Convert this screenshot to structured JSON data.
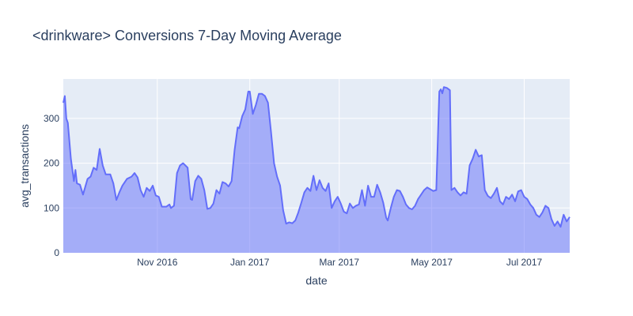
{
  "chart_data": {
    "type": "area",
    "title": "<drinkware> Conversions 7-Day Moving Average",
    "xlabel": "date",
    "ylabel": "avg_transactions",
    "x_range": [
      "2016-08-31",
      "2017-07-31"
    ],
    "ylim": [
      0,
      388
    ],
    "y_ticks": [
      0,
      100,
      200,
      300
    ],
    "x_ticks": [
      {
        "date": "2016-11-01",
        "label": "Nov 2016"
      },
      {
        "date": "2017-01-01",
        "label": "Jan 2017"
      },
      {
        "date": "2017-03-01",
        "label": "Mar 2017"
      },
      {
        "date": "2017-05-01",
        "label": "May 2017"
      },
      {
        "date": "2017-07-01",
        "label": "Jul 2017"
      }
    ],
    "grid": true,
    "colors": {
      "plot_bg": "#e5ecf6",
      "line": "#636efa",
      "fill": "rgba(99,110,250,0.5)",
      "grid": "#ffffff",
      "text": "#2a3f5f"
    },
    "series": [
      {
        "points": [
          [
            "2016-08-31",
            335
          ],
          [
            "2016-09-01",
            350
          ],
          [
            "2016-09-02",
            300
          ],
          [
            "2016-09-03",
            290
          ],
          [
            "2016-09-05",
            210
          ],
          [
            "2016-09-07",
            160
          ],
          [
            "2016-09-08",
            185
          ],
          [
            "2016-09-09",
            155
          ],
          [
            "2016-09-11",
            152
          ],
          [
            "2016-09-13",
            130
          ],
          [
            "2016-09-16",
            165
          ],
          [
            "2016-09-18",
            170
          ],
          [
            "2016-09-20",
            190
          ],
          [
            "2016-09-22",
            185
          ],
          [
            "2016-09-24",
            232
          ],
          [
            "2016-09-26",
            195
          ],
          [
            "2016-09-28",
            175
          ],
          [
            "2016-10-01",
            175
          ],
          [
            "2016-10-03",
            155
          ],
          [
            "2016-10-05",
            118
          ],
          [
            "2016-10-07",
            135
          ],
          [
            "2016-10-09",
            150
          ],
          [
            "2016-10-12",
            165
          ],
          [
            "2016-10-15",
            170
          ],
          [
            "2016-10-17",
            178
          ],
          [
            "2016-10-19",
            168
          ],
          [
            "2016-10-21",
            140
          ],
          [
            "2016-10-23",
            125
          ],
          [
            "2016-10-25",
            145
          ],
          [
            "2016-10-27",
            138
          ],
          [
            "2016-10-29",
            150
          ],
          [
            "2016-10-31",
            128
          ],
          [
            "2016-11-02",
            125
          ],
          [
            "2016-11-04",
            103
          ],
          [
            "2016-11-07",
            103
          ],
          [
            "2016-11-09",
            108
          ],
          [
            "2016-11-10",
            100
          ],
          [
            "2016-11-12",
            105
          ],
          [
            "2016-11-14",
            178
          ],
          [
            "2016-11-16",
            195
          ],
          [
            "2016-11-18",
            200
          ],
          [
            "2016-11-21",
            190
          ],
          [
            "2016-11-23",
            120
          ],
          [
            "2016-11-24",
            118
          ],
          [
            "2016-11-26",
            160
          ],
          [
            "2016-11-28",
            172
          ],
          [
            "2016-11-30",
            165
          ],
          [
            "2016-12-02",
            140
          ],
          [
            "2016-12-04",
            98
          ],
          [
            "2016-12-06",
            100
          ],
          [
            "2016-12-08",
            110
          ],
          [
            "2016-12-10",
            140
          ],
          [
            "2016-12-12",
            132
          ],
          [
            "2016-12-14",
            158
          ],
          [
            "2016-12-16",
            155
          ],
          [
            "2016-12-18",
            148
          ],
          [
            "2016-12-20",
            160
          ],
          [
            "2016-12-22",
            230
          ],
          [
            "2016-12-24",
            280
          ],
          [
            "2016-12-25",
            278
          ],
          [
            "2016-12-27",
            305
          ],
          [
            "2016-12-29",
            320
          ],
          [
            "2016-12-31",
            360
          ],
          [
            "2017-01-01",
            360
          ],
          [
            "2017-01-03",
            310
          ],
          [
            "2017-01-05",
            330
          ],
          [
            "2017-01-07",
            355
          ],
          [
            "2017-01-09",
            355
          ],
          [
            "2017-01-11",
            350
          ],
          [
            "2017-01-13",
            335
          ],
          [
            "2017-01-15",
            270
          ],
          [
            "2017-01-17",
            200
          ],
          [
            "2017-01-19",
            170
          ],
          [
            "2017-01-21",
            150
          ],
          [
            "2017-01-23",
            95
          ],
          [
            "2017-01-25",
            65
          ],
          [
            "2017-01-27",
            68
          ],
          [
            "2017-01-29",
            66
          ],
          [
            "2017-01-31",
            72
          ],
          [
            "2017-02-02",
            90
          ],
          [
            "2017-02-04",
            112
          ],
          [
            "2017-02-06",
            135
          ],
          [
            "2017-02-08",
            145
          ],
          [
            "2017-02-10",
            138
          ],
          [
            "2017-02-12",
            172
          ],
          [
            "2017-02-14",
            140
          ],
          [
            "2017-02-16",
            162
          ],
          [
            "2017-02-18",
            145
          ],
          [
            "2017-02-20",
            138
          ],
          [
            "2017-02-22",
            155
          ],
          [
            "2017-02-24",
            100
          ],
          [
            "2017-02-26",
            115
          ],
          [
            "2017-02-28",
            125
          ],
          [
            "2017-03-02",
            110
          ],
          [
            "2017-03-04",
            92
          ],
          [
            "2017-03-06",
            88
          ],
          [
            "2017-03-08",
            110
          ],
          [
            "2017-03-10",
            100
          ],
          [
            "2017-03-12",
            105
          ],
          [
            "2017-03-14",
            108
          ],
          [
            "2017-03-16",
            140
          ],
          [
            "2017-03-18",
            105
          ],
          [
            "2017-03-20",
            150
          ],
          [
            "2017-03-22",
            125
          ],
          [
            "2017-03-24",
            125
          ],
          [
            "2017-03-26",
            152
          ],
          [
            "2017-03-28",
            135
          ],
          [
            "2017-03-30",
            112
          ],
          [
            "2017-04-01",
            78
          ],
          [
            "2017-04-02",
            72
          ],
          [
            "2017-04-04",
            100
          ],
          [
            "2017-04-06",
            125
          ],
          [
            "2017-04-08",
            140
          ],
          [
            "2017-04-10",
            138
          ],
          [
            "2017-04-12",
            125
          ],
          [
            "2017-04-14",
            108
          ],
          [
            "2017-04-16",
            100
          ],
          [
            "2017-04-18",
            97
          ],
          [
            "2017-04-20",
            105
          ],
          [
            "2017-04-22",
            120
          ],
          [
            "2017-04-24",
            130
          ],
          [
            "2017-04-26",
            140
          ],
          [
            "2017-04-28",
            146
          ],
          [
            "2017-04-30",
            142
          ],
          [
            "2017-05-02",
            138
          ],
          [
            "2017-05-04",
            140
          ],
          [
            "2017-05-06",
            360
          ],
          [
            "2017-05-07",
            365
          ],
          [
            "2017-05-08",
            356
          ],
          [
            "2017-05-09",
            370
          ],
          [
            "2017-05-11",
            368
          ],
          [
            "2017-05-13",
            363
          ],
          [
            "2017-05-14",
            140
          ],
          [
            "2017-05-16",
            145
          ],
          [
            "2017-05-18",
            135
          ],
          [
            "2017-05-20",
            128
          ],
          [
            "2017-05-22",
            135
          ],
          [
            "2017-05-24",
            132
          ],
          [
            "2017-05-26",
            195
          ],
          [
            "2017-05-28",
            210
          ],
          [
            "2017-05-30",
            230
          ],
          [
            "2017-06-01",
            215
          ],
          [
            "2017-06-03",
            218
          ],
          [
            "2017-06-05",
            140
          ],
          [
            "2017-06-07",
            127
          ],
          [
            "2017-06-09",
            122
          ],
          [
            "2017-06-11",
            132
          ],
          [
            "2017-06-13",
            145
          ],
          [
            "2017-06-15",
            115
          ],
          [
            "2017-06-17",
            108
          ],
          [
            "2017-06-19",
            125
          ],
          [
            "2017-06-21",
            120
          ],
          [
            "2017-06-23",
            130
          ],
          [
            "2017-06-25",
            115
          ],
          [
            "2017-06-27",
            137
          ],
          [
            "2017-06-29",
            140
          ],
          [
            "2017-07-01",
            125
          ],
          [
            "2017-07-03",
            120
          ],
          [
            "2017-07-05",
            108
          ],
          [
            "2017-07-07",
            100
          ],
          [
            "2017-07-09",
            85
          ],
          [
            "2017-07-11",
            80
          ],
          [
            "2017-07-13",
            90
          ],
          [
            "2017-07-15",
            105
          ],
          [
            "2017-07-17",
            100
          ],
          [
            "2017-07-19",
            75
          ],
          [
            "2017-07-21",
            60
          ],
          [
            "2017-07-23",
            70
          ],
          [
            "2017-07-25",
            58
          ],
          [
            "2017-07-27",
            85
          ],
          [
            "2017-07-29",
            70
          ],
          [
            "2017-07-31",
            80
          ]
        ]
      }
    ]
  }
}
